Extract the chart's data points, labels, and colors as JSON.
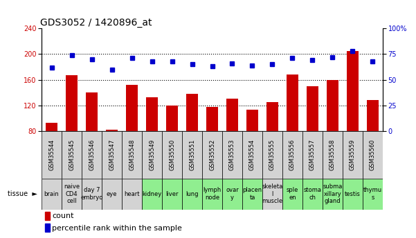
{
  "title": "GDS3052 / 1420896_at",
  "gsm_labels": [
    "GSM35544",
    "GSM35545",
    "GSM35546",
    "GSM35547",
    "GSM35548",
    "GSM35549",
    "GSM35550",
    "GSM35551",
    "GSM35552",
    "GSM35553",
    "GSM35554",
    "GSM35555",
    "GSM35556",
    "GSM35557",
    "GSM35558",
    "GSM35559",
    "GSM35560"
  ],
  "tissue_labels": [
    "brain",
    "naive\nCD4\ncell",
    "day 7\nembryо",
    "eye",
    "heart",
    "kidney",
    "liver",
    "lung",
    "lymph\nnode",
    "ovar\ny",
    "placen\nta",
    "skeleta\nl\nmuscle",
    "sple\nen",
    "stoma\nch",
    "subma\nxillary\ngland",
    "testis",
    "thymu\ns"
  ],
  "tissue_colors": [
    "#d3d3d3",
    "#d3d3d3",
    "#d3d3d3",
    "#d3d3d3",
    "#d3d3d3",
    "#90ee90",
    "#90ee90",
    "#90ee90",
    "#90ee90",
    "#90ee90",
    "#90ee90",
    "#d3d3d3",
    "#90ee90",
    "#90ee90",
    "#90ee90",
    "#90ee90",
    "#90ee90"
  ],
  "gsm_color": "#d3d3d3",
  "counts": [
    93,
    167,
    140,
    82,
    152,
    133,
    120,
    138,
    117,
    130,
    113,
    125,
    168,
    150,
    160,
    205,
    128
  ],
  "percentiles": [
    62,
    74,
    70,
    60,
    71,
    68,
    68,
    65,
    63,
    66,
    64,
    65,
    71,
    69,
    72,
    78,
    68
  ],
  "ylim_left": [
    80,
    240
  ],
  "ylim_right": [
    0,
    100
  ],
  "yticks_left": [
    80,
    120,
    160,
    200,
    240
  ],
  "yticks_right": [
    0,
    25,
    50,
    75,
    100
  ],
  "ytick_right_labels": [
    "0",
    "25",
    "50",
    "75",
    "100%"
  ],
  "bar_color": "#cc0000",
  "dot_color": "#0000cc",
  "background_color": "#ffffff",
  "title_fontsize": 10,
  "tick_fontsize": 7,
  "legend_fontsize": 8,
  "gsm_fontsize": 6,
  "tissue_fontsize": 6
}
